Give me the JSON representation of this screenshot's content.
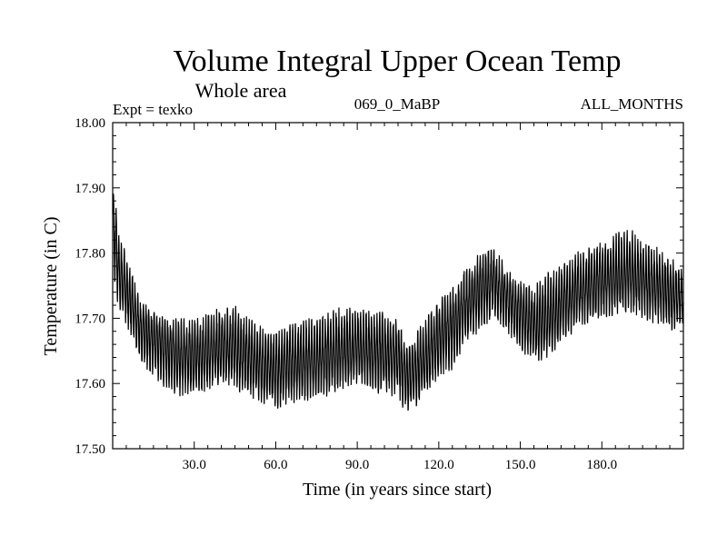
{
  "chart_data": {
    "type": "line",
    "title": "Volume Integral Upper Ocean Temp",
    "subtitle": "Whole area",
    "experiment_label": "Expt = texko",
    "run_label": "069_0_MaBP",
    "period_label": "ALL_MONTHS",
    "xlabel": "Time (in years since start)",
    "ylabel": "Temperature (in C)",
    "xlim": [
      0,
      210
    ],
    "ylim": [
      17.5,
      18.0
    ],
    "x_ticks": [
      30,
      60,
      90,
      120,
      150,
      180
    ],
    "x_tick_labels": [
      "30.0",
      "60.0",
      "90.0",
      "120.0",
      "150.0",
      "180.0"
    ],
    "y_ticks": [
      17.5,
      17.6,
      17.7,
      17.8,
      17.9,
      18.0
    ],
    "y_tick_labels": [
      "17.50",
      "17.60",
      "17.70",
      "17.80",
      "17.90",
      "18.00"
    ],
    "grid": false,
    "series": [
      {
        "name": "Volume integral upper ocean temperature",
        "x": [
          0,
          1,
          2,
          3,
          5,
          8,
          10,
          15,
          20,
          25,
          30,
          35,
          40,
          45,
          50,
          55,
          60,
          65,
          70,
          75,
          80,
          85,
          90,
          95,
          100,
          105,
          108,
          112,
          115,
          120,
          125,
          130,
          135,
          140,
          145,
          150,
          155,
          160,
          165,
          170,
          175,
          180,
          185,
          190,
          195,
          200,
          205,
          210
        ],
        "mean": [
          17.86,
          17.82,
          17.78,
          17.76,
          17.74,
          17.71,
          17.69,
          17.67,
          17.655,
          17.645,
          17.64,
          17.645,
          17.65,
          17.655,
          17.64,
          17.63,
          17.62,
          17.63,
          17.635,
          17.64,
          17.645,
          17.65,
          17.655,
          17.65,
          17.645,
          17.64,
          17.61,
          17.62,
          17.64,
          17.67,
          17.69,
          17.72,
          17.74,
          17.755,
          17.73,
          17.705,
          17.69,
          17.7,
          17.72,
          17.74,
          17.75,
          17.755,
          17.765,
          17.77,
          17.76,
          17.75,
          17.74,
          17.73
        ],
        "min": [
          17.8,
          17.74,
          17.72,
          17.71,
          17.69,
          17.66,
          17.62,
          17.61,
          17.59,
          17.58,
          17.58,
          17.59,
          17.6,
          17.59,
          17.58,
          17.57,
          17.56,
          17.57,
          17.57,
          17.58,
          17.58,
          17.59,
          17.6,
          17.59,
          17.58,
          17.58,
          17.55,
          17.56,
          17.58,
          17.61,
          17.62,
          17.66,
          17.68,
          17.7,
          17.68,
          17.65,
          17.63,
          17.64,
          17.66,
          17.68,
          17.69,
          17.7,
          17.7,
          17.71,
          17.7,
          17.69,
          17.68,
          17.69
        ],
        "max": [
          17.9,
          17.89,
          17.83,
          17.82,
          17.8,
          17.76,
          17.73,
          17.71,
          17.7,
          17.7,
          17.7,
          17.71,
          17.72,
          17.72,
          17.7,
          17.69,
          17.68,
          17.69,
          17.7,
          17.7,
          17.71,
          17.72,
          17.72,
          17.71,
          17.71,
          17.7,
          17.66,
          17.68,
          17.7,
          17.73,
          17.75,
          17.78,
          17.8,
          17.81,
          17.78,
          17.76,
          17.75,
          17.77,
          17.79,
          17.8,
          17.81,
          17.82,
          17.83,
          17.84,
          17.82,
          17.81,
          17.8,
          17.78
        ]
      }
    ]
  }
}
